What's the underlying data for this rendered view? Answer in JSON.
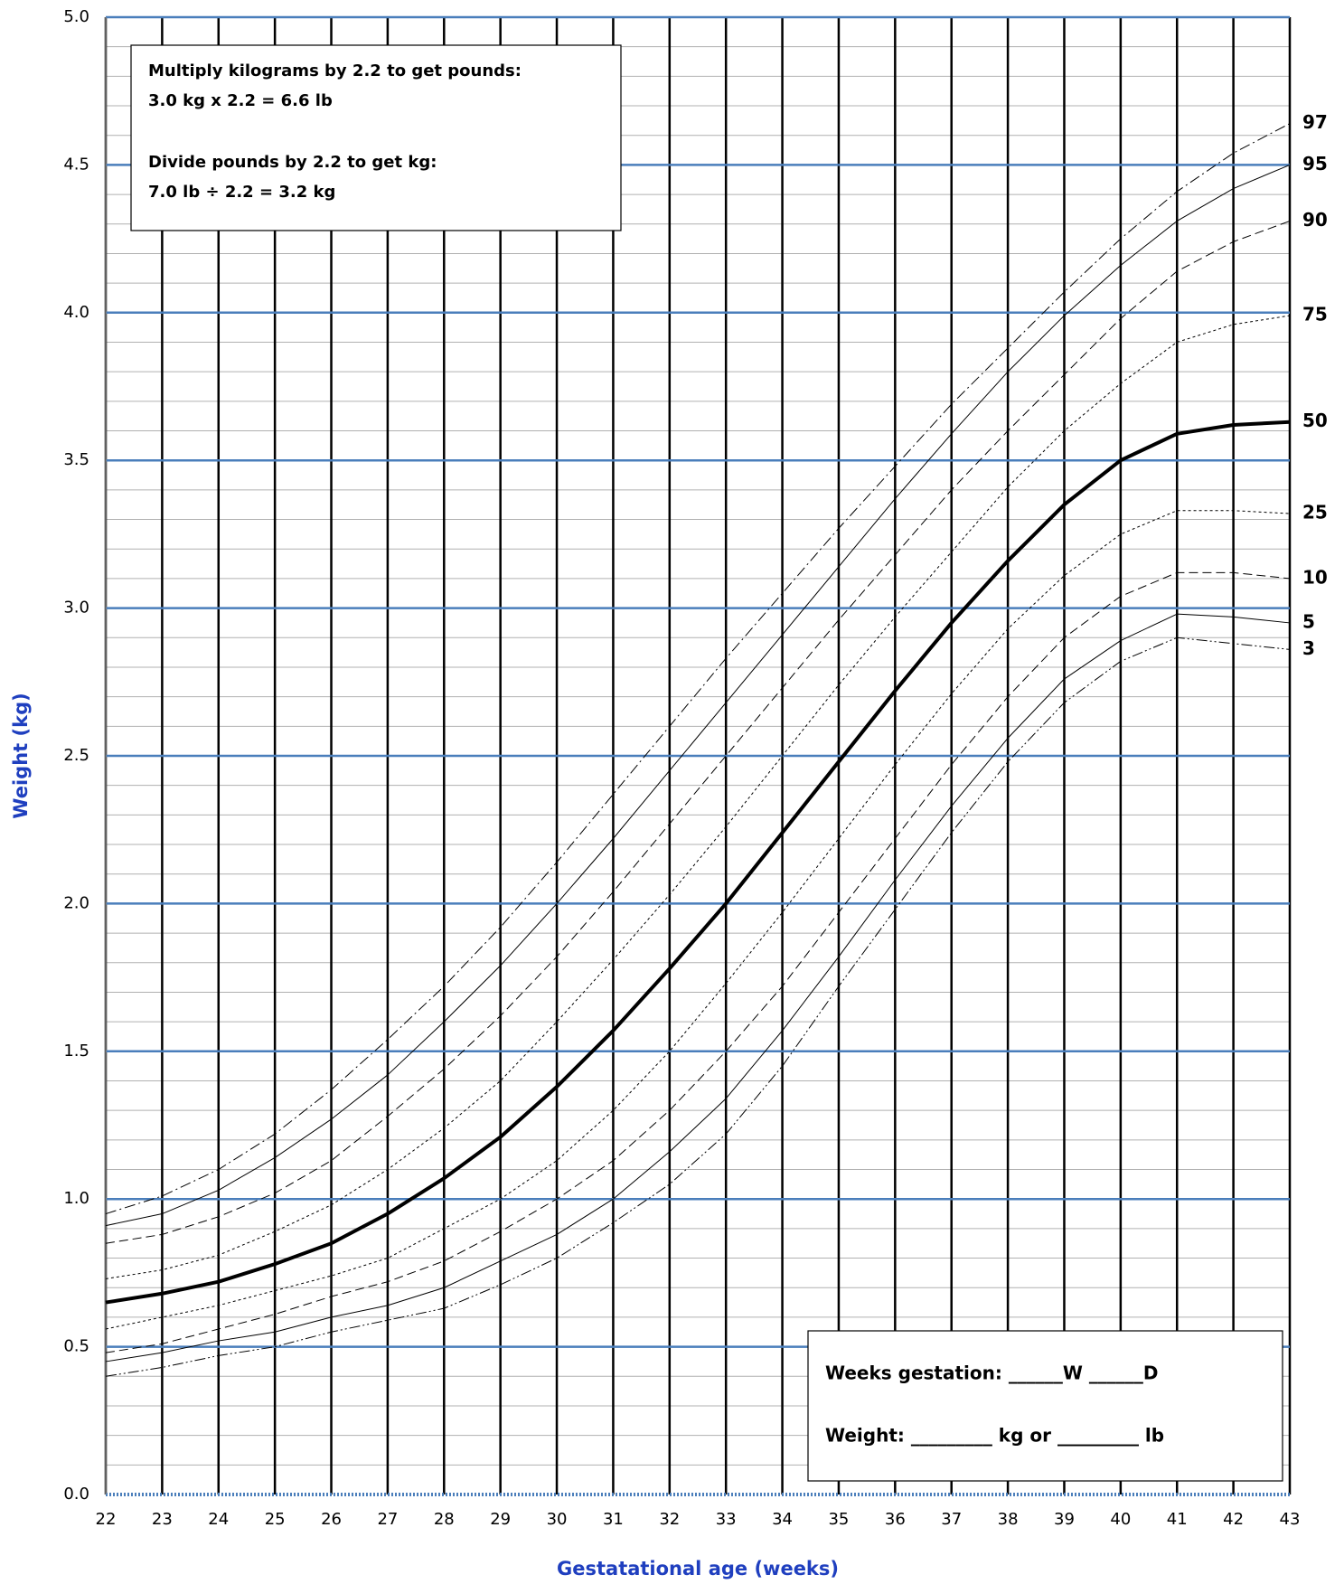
{
  "chart_data": {
    "type": "line",
    "x_label": "Gestatational age (weeks)",
    "y_label": "Weight (kg)",
    "xlim": [
      22,
      43
    ],
    "xticks": [
      22,
      23,
      24,
      25,
      26,
      27,
      28,
      29,
      30,
      31,
      32,
      33,
      34,
      35,
      36,
      37,
      38,
      39,
      40,
      41,
      42,
      43
    ],
    "ylim": [
      0,
      5
    ],
    "yticks": [
      {
        "value": 0,
        "label": "0.0"
      },
      0.5,
      {
        "value": 1,
        "label": "1.0"
      },
      1.5,
      {
        "value": 2,
        "label": "2.0"
      },
      2.5,
      {
        "value": 3,
        "label": "3.0"
      },
      3.5,
      {
        "value": 4,
        "label": "4.0"
      },
      4.5,
      {
        "value": 5,
        "label": "5.0"
      }
    ],
    "grid": true,
    "minor_grid_step": 0.1,
    "grid_color": "#4a7ebb",
    "x": [
      22,
      23,
      24,
      25,
      26,
      27,
      28,
      29,
      30,
      31,
      32,
      33,
      34,
      35,
      36,
      37,
      38,
      39,
      40,
      41,
      42,
      43
    ],
    "series": [
      {
        "name": "97",
        "color": "#000000",
        "line_style": "dash-dot",
        "line_width": 1,
        "values": [
          0.95,
          1.01,
          1.1,
          1.22,
          1.37,
          1.54,
          1.72,
          1.92,
          2.14,
          2.37,
          2.6,
          2.83,
          3.05,
          3.27,
          3.48,
          3.69,
          3.88,
          4.07,
          4.25,
          4.41,
          4.54,
          4.64
        ]
      },
      {
        "name": "95",
        "color": "#000000",
        "line_style": "solid",
        "line_width": 1,
        "values": [
          0.91,
          0.95,
          1.03,
          1.14,
          1.27,
          1.42,
          1.6,
          1.79,
          2.0,
          2.22,
          2.45,
          2.68,
          2.91,
          3.14,
          3.37,
          3.59,
          3.8,
          3.99,
          4.16,
          4.31,
          4.42,
          4.5
        ]
      },
      {
        "name": "90",
        "color": "#000000",
        "line_style": "dashed",
        "line_width": 1,
        "values": [
          0.85,
          0.88,
          0.94,
          1.02,
          1.13,
          1.28,
          1.44,
          1.62,
          1.82,
          2.04,
          2.27,
          2.5,
          2.73,
          2.96,
          3.18,
          3.4,
          3.6,
          3.79,
          3.98,
          4.14,
          4.24,
          4.31
        ]
      },
      {
        "name": "75",
        "color": "#000000",
        "line_style": "dotted",
        "line_width": 1,
        "values": [
          0.73,
          0.76,
          0.81,
          0.89,
          0.98,
          1.1,
          1.24,
          1.4,
          1.6,
          1.81,
          2.03,
          2.26,
          2.5,
          2.74,
          2.97,
          3.19,
          3.41,
          3.6,
          3.76,
          3.9,
          3.96,
          3.99
        ]
      },
      {
        "name": "50",
        "color": "#000000",
        "line_style": "solid",
        "line_width": 4,
        "values": [
          0.65,
          0.68,
          0.72,
          0.78,
          0.85,
          0.95,
          1.07,
          1.21,
          1.38,
          1.57,
          1.78,
          2.0,
          2.24,
          2.48,
          2.72,
          2.95,
          3.16,
          3.35,
          3.5,
          3.59,
          3.62,
          3.63
        ]
      },
      {
        "name": "25",
        "color": "#000000",
        "line_style": "dotted",
        "line_width": 1,
        "values": [
          0.56,
          0.6,
          0.64,
          0.69,
          0.74,
          0.8,
          0.9,
          1.0,
          1.13,
          1.3,
          1.5,
          1.73,
          1.97,
          2.22,
          2.47,
          2.71,
          2.93,
          3.11,
          3.25,
          3.33,
          3.33,
          3.32
        ]
      },
      {
        "name": "10",
        "color": "#000000",
        "line_style": "dashed",
        "line_width": 1,
        "values": [
          0.48,
          0.51,
          0.56,
          0.61,
          0.67,
          0.72,
          0.79,
          0.89,
          1.0,
          1.13,
          1.3,
          1.5,
          1.72,
          1.97,
          2.22,
          2.47,
          2.7,
          2.9,
          3.04,
          3.12,
          3.12,
          3.1
        ]
      },
      {
        "name": "5",
        "color": "#000000",
        "line_style": "solid",
        "line_width": 1,
        "values": [
          0.45,
          0.48,
          0.52,
          0.55,
          0.6,
          0.64,
          0.7,
          0.79,
          0.88,
          1.0,
          1.16,
          1.34,
          1.57,
          1.82,
          2.08,
          2.33,
          2.56,
          2.76,
          2.89,
          2.98,
          2.97,
          2.95
        ]
      },
      {
        "name": "3",
        "color": "#000000",
        "line_style": "dash-dot-dot",
        "line_width": 1,
        "values": [
          0.4,
          0.43,
          0.47,
          0.5,
          0.55,
          0.59,
          0.63,
          0.71,
          0.8,
          0.92,
          1.05,
          1.22,
          1.45,
          1.72,
          1.98,
          2.24,
          2.48,
          2.68,
          2.82,
          2.9,
          2.88,
          2.86
        ]
      }
    ],
    "conversion_note": [
      "Multiply kilograms by 2.2 to get pounds:",
      "3.0 kg  x 2.2 = 6.6 lb",
      "Divide pounds by 2.2 to get kg:",
      "7.0  lb ÷ 2.2 = 3.2 kg"
    ],
    "entry_form": [
      "Weeks gestation:  ______W ______D",
      "Weight: _________ kg or _________ lb"
    ]
  }
}
